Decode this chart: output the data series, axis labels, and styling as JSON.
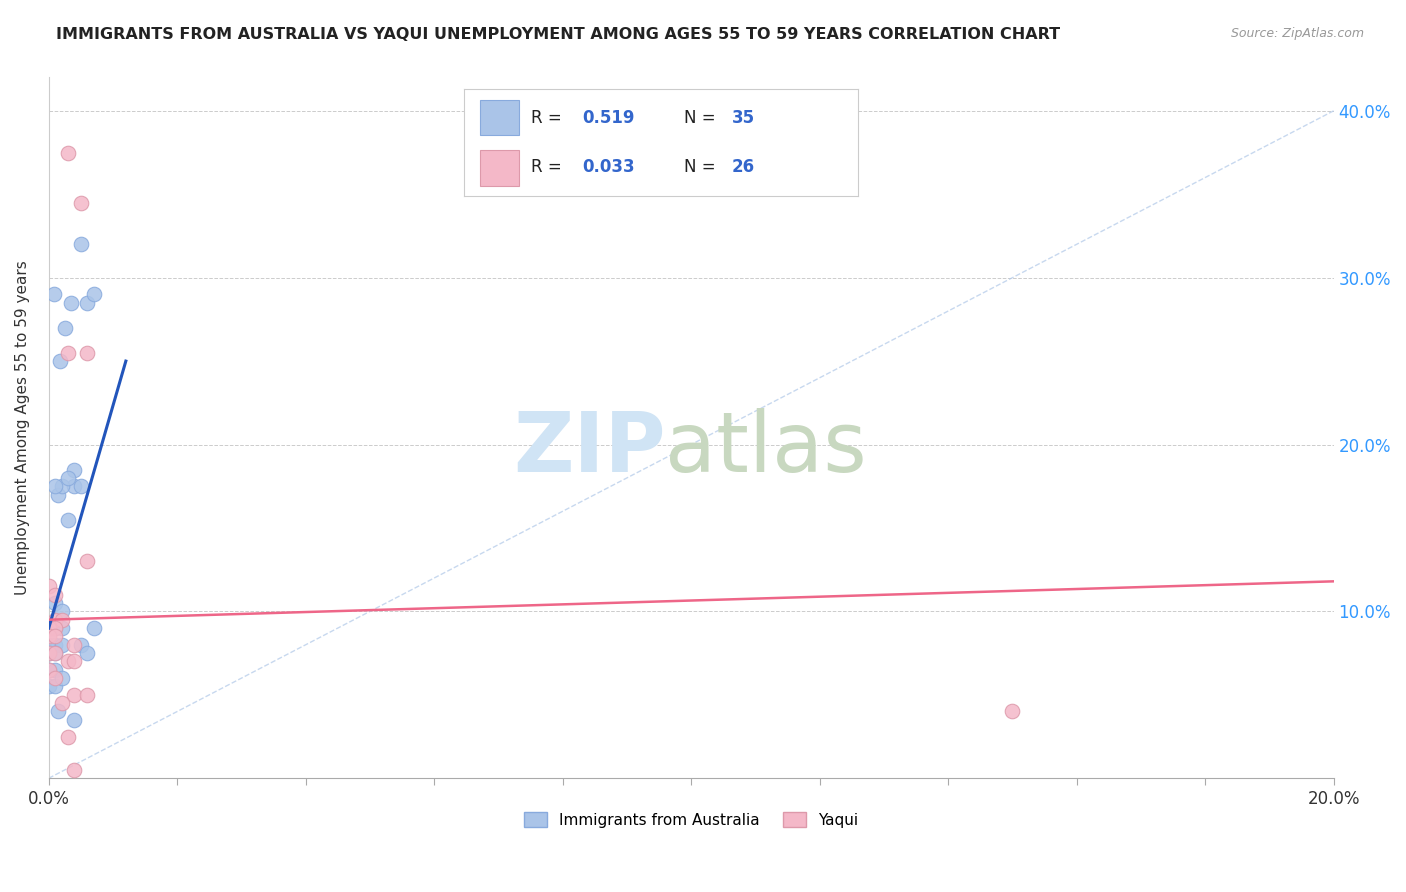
{
  "title": "IMMIGRANTS FROM AUSTRALIA VS YAQUI UNEMPLOYMENT AMONG AGES 55 TO 59 YEARS CORRELATION CHART",
  "source": "Source: ZipAtlas.com",
  "ylabel": "Unemployment Among Ages 55 to 59 years",
  "legend_entries": [
    {
      "label": "Immigrants from Australia",
      "R": "0.519",
      "N": "35",
      "color": "#aac4e8"
    },
    {
      "label": "Yaqui",
      "R": "0.033",
      "N": "26",
      "color": "#f4b8c8"
    }
  ],
  "blue_scatter": [
    [
      0.0008,
      0.29
    ],
    [
      0.0025,
      0.27
    ],
    [
      0.0018,
      0.25
    ],
    [
      0.0035,
      0.285
    ],
    [
      0.0015,
      0.17
    ],
    [
      0.004,
      0.185
    ],
    [
      0.005,
      0.32
    ],
    [
      0.006,
      0.285
    ],
    [
      0.007,
      0.29
    ],
    [
      0.004,
      0.175
    ],
    [
      0.002,
      0.175
    ],
    [
      0.005,
      0.175
    ],
    [
      0.003,
      0.18
    ],
    [
      0.001,
      0.175
    ],
    [
      0.003,
      0.155
    ],
    [
      0.001,
      0.105
    ],
    [
      0.002,
      0.1
    ],
    [
      0.0005,
      0.09
    ],
    [
      0.001,
      0.09
    ],
    [
      0.002,
      0.09
    ],
    [
      0.0,
      0.08
    ],
    [
      0.001,
      0.08
    ],
    [
      0.002,
      0.08
    ],
    [
      0.0,
      0.075
    ],
    [
      0.001,
      0.075
    ],
    [
      0.0,
      0.065
    ],
    [
      0.001,
      0.065
    ],
    [
      0.0,
      0.055
    ],
    [
      0.001,
      0.055
    ],
    [
      0.005,
      0.08
    ],
    [
      0.006,
      0.075
    ],
    [
      0.007,
      0.09
    ],
    [
      0.0015,
      0.04
    ],
    [
      0.004,
      0.035
    ],
    [
      0.002,
      0.06
    ]
  ],
  "pink_scatter": [
    [
      0.003,
      0.375
    ],
    [
      0.005,
      0.345
    ],
    [
      0.003,
      0.255
    ],
    [
      0.006,
      0.255
    ],
    [
      0.0,
      0.115
    ],
    [
      0.001,
      0.11
    ],
    [
      0.001,
      0.095
    ],
    [
      0.002,
      0.095
    ],
    [
      0.0,
      0.09
    ],
    [
      0.001,
      0.09
    ],
    [
      0.0,
      0.085
    ],
    [
      0.001,
      0.085
    ],
    [
      0.0,
      0.075
    ],
    [
      0.001,
      0.075
    ],
    [
      0.003,
      0.07
    ],
    [
      0.004,
      0.07
    ],
    [
      0.0,
      0.065
    ],
    [
      0.001,
      0.06
    ],
    [
      0.004,
      0.05
    ],
    [
      0.006,
      0.05
    ],
    [
      0.006,
      0.13
    ],
    [
      0.003,
      0.025
    ],
    [
      0.15,
      0.04
    ],
    [
      0.004,
      0.005
    ],
    [
      0.004,
      0.08
    ],
    [
      0.002,
      0.045
    ]
  ],
  "blue_line": {
    "x0": 0.0,
    "y0": 0.09,
    "x1": 0.012,
    "y1": 0.25
  },
  "pink_line": {
    "x0": 0.0,
    "y0": 0.095,
    "x1": 0.2,
    "y1": 0.118
  },
  "diagonal_line": {
    "x0": 0.0,
    "y0": 0.0,
    "x1": 0.2,
    "y1": 0.4
  },
  "xlim": [
    0.0,
    0.2
  ],
  "ylim": [
    0.0,
    0.42
  ],
  "scatter_size": 110
}
